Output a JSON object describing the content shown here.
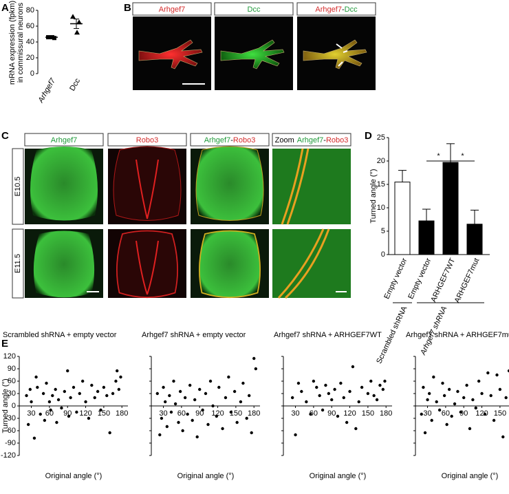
{
  "panel_labels": [
    "A",
    "B",
    "C",
    "D",
    "E"
  ],
  "b_headers": [
    [
      {
        "text": "Arhgef7",
        "color": "#d42a2a"
      }
    ],
    [
      {
        "text": "Dcc",
        "color": "#1f9a3a"
      }
    ],
    [
      {
        "text": "Arhgef7",
        "color": "#d42a2a"
      },
      {
        "text": "-",
        "color": "#000000"
      },
      {
        "text": "Dcc",
        "color": "#1f9a3a"
      }
    ]
  ],
  "c_headers": [
    [
      {
        "text": "Arhgef7",
        "color": "#1f9a3a"
      }
    ],
    [
      {
        "text": "Robo3",
        "color": "#d42a2a"
      }
    ],
    [
      {
        "text": "Arhgef7",
        "color": "#1f9a3a"
      },
      {
        "text": "-",
        "color": "#000000"
      },
      {
        "text": "Robo3",
        "color": "#d42a2a"
      }
    ],
    [
      {
        "text": "Zoom",
        "color": "#000000"
      },
      {
        "text": "Arhgef7",
        "color": "#1f9a3a"
      },
      {
        "text": "-",
        "color": "#000000"
      },
      {
        "text": "Robo3",
        "color": "#d42a2a"
      }
    ]
  ],
  "c_rows": [
    "E10.5",
    "E11.5"
  ],
  "chart_data": [
    {
      "type": "dot",
      "ylabel_lines": [
        "mRNA expression (fpkm)",
        "in commissural neurons"
      ],
      "categories": [
        "Arhgef7",
        "Dcc"
      ],
      "points": [
        [
          46,
          45,
          46
        ],
        [
          72,
          65,
          52
        ]
      ],
      "means": [
        46,
        63
      ],
      "errors": [
        0.7,
        6
      ],
      "ylim": [
        0,
        80
      ],
      "yticks": [
        0,
        20,
        40,
        60,
        80
      ]
    },
    {
      "type": "bar",
      "ylabel": "Turned angle (°)",
      "categories": [
        "Empty vector",
        "Empty vector",
        "ARHGEF7WT",
        "ARHGEF7mut"
      ],
      "values": [
        15.5,
        7.2,
        19.7,
        6.5
      ],
      "errors": [
        2.5,
        2.5,
        4,
        3
      ],
      "colors": [
        "#ffffff",
        "#000000",
        "#000000",
        "#000000"
      ],
      "groups": [
        "Scrambled shRNA",
        "Arhgef7 shRNA"
      ],
      "annotations": [
        "*",
        "*"
      ],
      "ylim": [
        0,
        25
      ],
      "yticks": [
        0,
        5,
        10,
        15,
        20,
        25
      ]
    },
    {
      "type": "scatter",
      "title": "Scrambled shRNA + empty vector",
      "xlabel": "Original angle (°)",
      "ylabel": "Turned angle (°)",
      "xlim": [
        10,
        190
      ],
      "ylim": [
        -120,
        120
      ],
      "xticks": [
        30,
        60,
        90,
        120,
        150,
        180
      ],
      "yticks": [
        -120,
        -90,
        -60,
        -30,
        0,
        30,
        60,
        90,
        120
      ],
      "x": [
        22,
        25,
        28,
        30,
        35,
        38,
        40,
        45,
        50,
        52,
        55,
        60,
        62,
        65,
        70,
        72,
        75,
        80,
        85,
        90,
        92,
        95,
        100,
        105,
        110,
        115,
        120,
        125,
        130,
        135,
        140,
        145,
        150,
        155,
        160,
        165,
        170,
        175,
        178,
        172
      ],
      "values": [
        25,
        -45,
        40,
        10,
        -78,
        70,
        45,
        -20,
        30,
        -35,
        55,
        10,
        -10,
        25,
        40,
        -40,
        15,
        -5,
        35,
        85,
        -25,
        20,
        45,
        -15,
        30,
        60,
        10,
        -30,
        50,
        20,
        35,
        -10,
        45,
        25,
        -65,
        30,
        60,
        40,
        70,
        85
      ]
    },
    {
      "type": "scatter",
      "title": "Arhgef7 shRNA + empty vector",
      "xlabel": "Original angle (°)",
      "xlim": [
        10,
        190
      ],
      "ylim": [
        -120,
        120
      ],
      "xticks": [
        30,
        60,
        90,
        120,
        150,
        180
      ],
      "x": [
        20,
        24,
        27,
        30,
        33,
        36,
        40,
        43,
        47,
        50,
        55,
        58,
        62,
        66,
        70,
        74,
        78,
        82,
        86,
        90,
        95,
        100,
        104,
        108,
        112,
        118,
        122,
        128,
        133,
        138,
        142,
        148,
        152,
        158,
        162,
        168,
        172,
        176,
        180,
        183
      ],
      "values": [
        30,
        -70,
        -30,
        45,
        10,
        -50,
        25,
        -15,
        60,
        5,
        -40,
        35,
        -60,
        20,
        -20,
        50,
        -35,
        15,
        -75,
        40,
        -10,
        30,
        -45,
        60,
        0,
        -25,
        45,
        -55,
        20,
        70,
        -15,
        35,
        -40,
        10,
        55,
        -30,
        25,
        -65,
        115,
        90
      ]
    },
    {
      "type": "scatter",
      "title": "Arhgef7 shRNA + ARHGEF7WT",
      "xlabel": "Original angle (°)",
      "xlim": [
        10,
        190
      ],
      "ylim": [
        -120,
        120
      ],
      "xticks": [
        30,
        60,
        90,
        120,
        150,
        180
      ],
      "x": [
        25,
        30,
        35,
        40,
        48,
        55,
        60,
        65,
        70,
        75,
        80,
        85,
        90,
        95,
        100,
        105,
        110,
        115,
        120,
        125,
        130,
        135,
        140,
        150,
        155,
        160,
        165,
        170,
        175,
        178
      ],
      "values": [
        20,
        -70,
        55,
        35,
        10,
        -20,
        60,
        45,
        25,
        -10,
        50,
        30,
        15,
        40,
        -25,
        55,
        20,
        -40,
        35,
        95,
        -55,
        10,
        45,
        30,
        60,
        25,
        15,
        50,
        40,
        60
      ]
    },
    {
      "type": "scatter",
      "title": "Arhgef7 shRNA + ARHGEF7mut",
      "xlabel": "Original angle (°)",
      "xlim": [
        10,
        190
      ],
      "ylim": [
        -120,
        120
      ],
      "xticks": [
        30,
        60,
        90,
        120,
        150,
        180
      ],
      "x": [
        20,
        23,
        26,
        30,
        33,
        37,
        40,
        45,
        50,
        55,
        58,
        62,
        66,
        70,
        75,
        80,
        85,
        90,
        95,
        100,
        105,
        110,
        115,
        120,
        125,
        130,
        135,
        140,
        145,
        150,
        155,
        160,
        165,
        170,
        175
      ],
      "values": [
        -20,
        45,
        -65,
        15,
        30,
        -35,
        70,
        10,
        -10,
        55,
        25,
        -45,
        40,
        -25,
        5,
        35,
        -15,
        20,
        50,
        -55,
        15,
        -5,
        60,
        30,
        -20,
        80,
        25,
        -35,
        75,
        40,
        -75,
        20,
        85,
        10,
        -10
      ]
    }
  ]
}
